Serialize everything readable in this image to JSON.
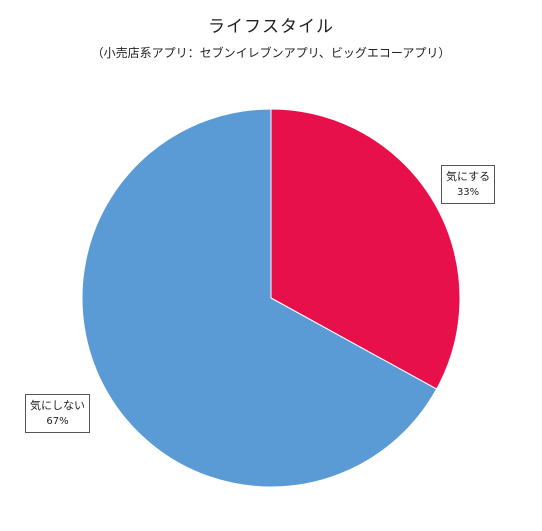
{
  "chart_data": {
    "type": "pie",
    "title": "ライフスタイル",
    "subtitle": "（小売店系アプリ：セブンイレブンアプリ、ビッグエコーアプリ）",
    "categories": [
      "気にする",
      "気にしない"
    ],
    "values": [
      33,
      67
    ],
    "value_labels": [
      "33%",
      "67%"
    ],
    "colors": [
      "#E8104A",
      "#5B9BD5"
    ],
    "legend": "none",
    "start_angle_deg": 0,
    "direction": "clockwise"
  }
}
